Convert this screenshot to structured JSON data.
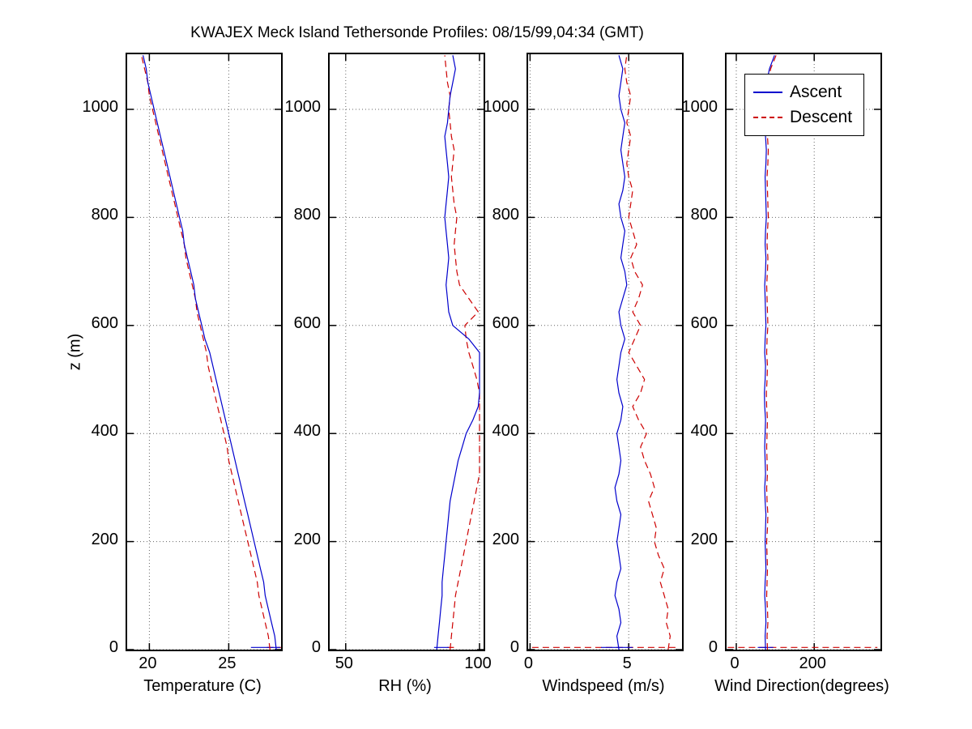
{
  "chart_data": {
    "type": "line",
    "title": "KWAJEX Meck Island Tethersonde Profiles: 08/15/99,04:34 (GMT)",
    "ylabel": "z (m)",
    "ylim": [
      0,
      1102
    ],
    "yticks": [
      0,
      200,
      400,
      600,
      800,
      1000
    ],
    "grid": "on",
    "colors": {
      "ascent": "#0000cd",
      "descent": "#cd0000"
    },
    "legend": {
      "position": "top-right-of-wind-direction-panel",
      "entries": [
        {
          "label": "Ascent",
          "series": "ascent",
          "style": "solid"
        },
        {
          "label": "Descent",
          "series": "descent",
          "style": "dashed"
        }
      ]
    },
    "z": [
      0,
      25,
      50,
      75,
      100,
      125,
      150,
      175,
      200,
      225,
      250,
      275,
      300,
      325,
      350,
      375,
      400,
      425,
      450,
      475,
      500,
      525,
      550,
      575,
      600,
      625,
      650,
      675,
      700,
      725,
      750,
      775,
      800,
      825,
      850,
      875,
      900,
      925,
      950,
      975,
      1000,
      1025,
      1050,
      1075,
      1100
    ],
    "panels": [
      {
        "xlabel": "Temperature (C)",
        "xlim": [
          18.6,
          28.3
        ],
        "xticks": [
          20,
          25
        ],
        "ascent": [
          28.0,
          27.9,
          27.7,
          27.5,
          27.3,
          27.2,
          27.0,
          26.8,
          26.6,
          26.4,
          26.2,
          26.0,
          25.8,
          25.6,
          25.4,
          25.2,
          25.0,
          24.8,
          24.6,
          24.4,
          24.2,
          24.0,
          23.8,
          23.5,
          23.3,
          23.1,
          22.9,
          22.8,
          22.6,
          22.4,
          22.2,
          22.1,
          21.9,
          21.7,
          21.5,
          21.3,
          21.1,
          20.9,
          20.7,
          20.5,
          20.3,
          20.1,
          19.9,
          19.8,
          19.6
        ],
        "descent": [
          27.6,
          27.5,
          27.3,
          27.1,
          26.9,
          26.8,
          26.6,
          26.4,
          26.2,
          26.0,
          25.8,
          25.6,
          25.4,
          25.2,
          25.0,
          24.9,
          24.7,
          24.5,
          24.3,
          24.1,
          23.9,
          23.7,
          23.6,
          23.4,
          23.2,
          23.0,
          22.9,
          22.7,
          22.5,
          22.3,
          22.2,
          22.0,
          21.8,
          21.6,
          21.4,
          21.2,
          21.0,
          20.8,
          20.6,
          20.4,
          20.2,
          20.0,
          19.9,
          19.7,
          19.5
        ],
        "surface": {
          "ascent": [
            26.4,
            28.25
          ],
          "descent": [
            27.4,
            28.3
          ]
        }
      },
      {
        "xlabel": "RH (%)",
        "xlim": [
          44,
          101.5
        ],
        "xticks": [
          50,
          100
        ],
        "ascent": [
          84,
          84.5,
          85,
          85.5,
          86,
          86,
          86.5,
          87,
          87.5,
          88,
          88.5,
          89,
          90,
          91,
          92,
          93.5,
          95,
          97.5,
          99.5,
          100,
          100,
          100,
          100,
          96,
          90,
          88.5,
          88,
          87.5,
          88,
          88.5,
          88,
          87.5,
          87,
          87.5,
          88,
          88.5,
          88,
          87.5,
          87,
          88,
          88.5,
          89,
          90,
          91,
          90
        ],
        "descent": [
          89,
          89.5,
          90,
          90.5,
          91,
          92,
          93,
          94,
          95,
          96,
          97,
          98,
          99,
          100,
          100,
          100,
          100,
          100,
          100,
          100,
          99,
          97.5,
          96,
          95,
          94.5,
          99.5,
          96,
          92.5,
          91.5,
          91,
          90.5,
          91,
          91.5,
          90.5,
          90,
          89.5,
          90,
          90.5,
          89.5,
          89,
          88.5,
          89,
          88,
          87.5,
          87
        ],
        "surface": {
          "ascent": [
            83,
            88.5
          ],
          "descent": [
            88,
            91
          ]
        }
      },
      {
        "xlabel": "Windspeed (m/s)",
        "xlim": [
          -0.1,
          7.7
        ],
        "xticks": [
          0,
          5
        ],
        "ascent": [
          4.5,
          4.4,
          4.6,
          4.5,
          4.3,
          4.4,
          4.6,
          4.5,
          4.4,
          4.5,
          4.6,
          4.4,
          4.3,
          4.5,
          4.6,
          4.5,
          4.4,
          4.6,
          4.7,
          4.5,
          4.4,
          4.5,
          4.6,
          4.8,
          4.6,
          4.5,
          4.7,
          4.9,
          4.8,
          4.6,
          4.7,
          4.8,
          4.6,
          4.5,
          4.7,
          4.8,
          4.7,
          4.6,
          4.7,
          4.8,
          4.6,
          4.5,
          4.6,
          4.7,
          4.5
        ],
        "descent": [
          7.0,
          7.1,
          6.9,
          7.0,
          6.8,
          6.6,
          6.8,
          6.5,
          6.3,
          6.4,
          6.2,
          6.0,
          6.3,
          6.1,
          5.8,
          5.6,
          5.9,
          5.5,
          5.2,
          5.6,
          5.8,
          5.4,
          5.0,
          5.3,
          5.6,
          5.2,
          5.5,
          5.7,
          5.3,
          5.1,
          5.4,
          5.2,
          5.0,
          5.1,
          5.2,
          5.0,
          4.9,
          5.0,
          5.1,
          4.9,
          5.0,
          5.1,
          4.9,
          4.8,
          4.9
        ],
        "surface": {
          "ascent": [
            3.6,
            5.2
          ],
          "descent": [
            0.1,
            7.5
          ]
        }
      },
      {
        "xlabel": "Wind Direction(degrees)",
        "xlim": [
          -25,
          370
        ],
        "xticks": [
          0,
          200
        ],
        "ascent": [
          75,
          74,
          76,
          75,
          73,
          74,
          76,
          75,
          74,
          75,
          76,
          74,
          73,
          75,
          74,
          73,
          74,
          75,
          73,
          72,
          74,
          75,
          73,
          74,
          76,
          75,
          74,
          73,
          75,
          76,
          74,
          75,
          77,
          76,
          75,
          74,
          76,
          77,
          75,
          74,
          75,
          76,
          78,
          85,
          98
        ],
        "descent": [
          80,
          79,
          81,
          80,
          78,
          79,
          80,
          79,
          78,
          80,
          81,
          79,
          78,
          80,
          79,
          78,
          79,
          80,
          78,
          77,
          79,
          80,
          78,
          79,
          81,
          80,
          79,
          78,
          80,
          81,
          79,
          80,
          82,
          81,
          80,
          79,
          81,
          82,
          80,
          79,
          80,
          81,
          82,
          88,
          102
        ],
        "surface": {
          "ascent": [
            55,
            95
          ],
          "descent": [
            -22,
            362
          ]
        }
      }
    ]
  }
}
